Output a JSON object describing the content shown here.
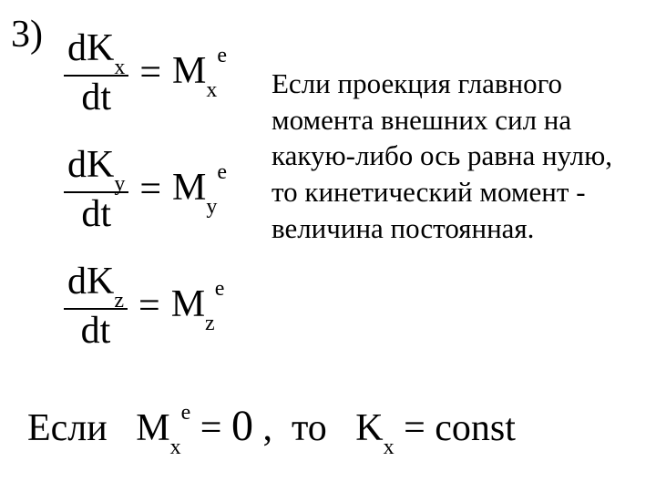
{
  "item_number": "3)",
  "equations": [
    {
      "num": "dK",
      "num_sub": "x",
      "den": "dt",
      "rhs_sym": "M",
      "rhs_sub": "x",
      "rhs_sup": "e"
    },
    {
      "num": "dK",
      "num_sub": "y",
      "den": "dt",
      "rhs_sym": "M",
      "rhs_sub": "y",
      "rhs_sup": "e"
    },
    {
      "num": "dK",
      "num_sub": "z",
      "den": "dt",
      "rhs_sym": "M",
      "rhs_sub": "z",
      "rhs_sup": "e"
    }
  ],
  "explanation": "Если проекция главного момента внешних сил на какую-либо ось равна нулю, то кинетический момент - величина постоянная.",
  "bottom": {
    "if_word": "Если",
    "m_sym": "M",
    "m_sub": "x",
    "m_sup": "e",
    "eq1": "=",
    "zero": "0",
    "comma": ",",
    "then_word": "то",
    "k_sym": "K",
    "k_sub": "x",
    "eq2": "=",
    "const": "const"
  },
  "style": {
    "background": "#ffffff",
    "text_color": "#000000",
    "font_family": "Times New Roman",
    "item_number_fontsize": 42,
    "equation_fontsize": 42,
    "subscript_fontsize": 24,
    "explanation_fontsize": 31,
    "bottom_fontsize": 42
  }
}
